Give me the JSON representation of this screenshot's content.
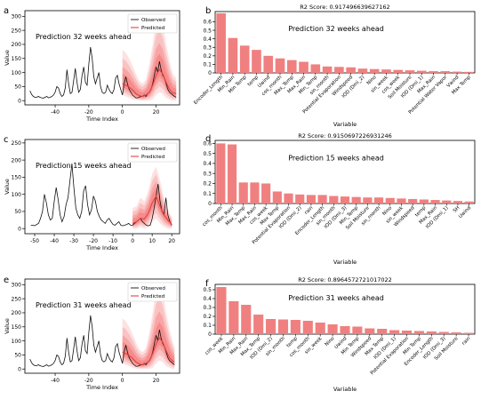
{
  "chart_data": [
    {
      "panel": "a",
      "type": "line",
      "title": "",
      "annotation": "Prediction 32 weeks ahead",
      "xlabel": "Time Index",
      "ylabel": "Value",
      "xlim": [
        -58,
        34
      ],
      "ylim": [
        -15,
        320
      ],
      "xticks": [
        -40,
        -20,
        0,
        20
      ],
      "yticks": [
        0,
        50,
        100,
        150,
        200,
        250,
        300
      ],
      "legend": {
        "position": "top-right",
        "entries": [
          "Observed",
          "Predicted"
        ]
      },
      "observed": {
        "name": "Observed",
        "x": [
          -55,
          -54,
          -53,
          -52,
          -51,
          -50,
          -49,
          -48,
          -47,
          -46,
          -45,
          -44,
          -43,
          -42,
          -41,
          -40,
          -39,
          -38,
          -37,
          -36,
          -35,
          -34,
          -33,
          -32,
          -31,
          -30,
          -29,
          -28,
          -27,
          -26,
          -25,
          -24,
          -23,
          -22,
          -21,
          -20,
          -19,
          -18,
          -17,
          -16,
          -15,
          -14,
          -13,
          -12,
          -11,
          -10,
          -9,
          -8,
          -7,
          -6,
          -5,
          -4,
          -3,
          -2,
          -1,
          0,
          1,
          2,
          3,
          4,
          5,
          6,
          7,
          8,
          9,
          10,
          11,
          12,
          13,
          14,
          15,
          16,
          17,
          18,
          19,
          20,
          21,
          22,
          23,
          24,
          25,
          26,
          27,
          28,
          29,
          30,
          31,
          32
        ],
        "y": [
          35,
          22,
          15,
          12,
          12,
          15,
          12,
          10,
          9,
          12,
          15,
          10,
          12,
          15,
          20,
          30,
          50,
          45,
          25,
          15,
          20,
          45,
          110,
          60,
          25,
          30,
          70,
          115,
          65,
          30,
          40,
          90,
          120,
          65,
          55,
          130,
          190,
          150,
          85,
          60,
          80,
          100,
          50,
          30,
          25,
          30,
          55,
          40,
          30,
          25,
          40,
          80,
          90,
          60,
          40,
          20,
          60,
          85,
          60,
          40,
          30,
          20,
          15,
          10,
          10,
          12,
          15,
          15,
          20,
          15,
          25,
          30,
          40,
          60,
          90,
          120,
          100,
          140,
          110,
          90,
          80,
          60,
          40,
          30,
          25,
          20,
          15,
          12
        ]
      },
      "predicted": {
        "name": "Predicted",
        "x": [
          0,
          2,
          4,
          6,
          8,
          10,
          12,
          14,
          16,
          18,
          20,
          22,
          24,
          26,
          28,
          30,
          32
        ],
        "median": [
          60,
          55,
          48,
          38,
          25,
          18,
          15,
          20,
          30,
          55,
          90,
          110,
          95,
          65,
          40,
          28,
          25
        ],
        "lower": [
          20,
          15,
          10,
          5,
          2,
          0,
          0,
          0,
          0,
          5,
          20,
          30,
          25,
          10,
          5,
          0,
          0
        ],
        "upper": [
          180,
          170,
          150,
          125,
          95,
          70,
          60,
          75,
          130,
          200,
          280,
          300,
          270,
          200,
          140,
          95,
          80
        ]
      }
    },
    {
      "panel": "b",
      "type": "bar",
      "title": "R2 Score: 0.917496639627162",
      "annotation": "Prediction 32 weeks ahead",
      "xlabel": "Variable",
      "ylabel": "",
      "ylim": [
        0,
        0.72
      ],
      "yticks": [
        0,
        0.1,
        0.2,
        0.3,
        0.4,
        0.5,
        0.6
      ],
      "categories": [
        "Encoder_Length",
        "Min_Rain",
        "Min Temp",
        "temp",
        "Uwind",
        "cos_month",
        "Max_Temp",
        "Max_Rain",
        "Min_Temp",
        "sin_month",
        "Potential Evaporation",
        "Windspeed",
        "IOD (Dmi_2)",
        "Nino",
        "sin_week",
        "cos_week",
        "Soil Moisture",
        "IOD (Dmi_1)",
        "Max_Rain",
        "Potential Water Vapor",
        "Vwind",
        "Max Temp"
      ],
      "values": [
        0.7,
        0.41,
        0.32,
        0.27,
        0.2,
        0.17,
        0.15,
        0.13,
        0.1,
        0.075,
        0.07,
        0.065,
        0.05,
        0.045,
        0.04,
        0.035,
        0.03,
        0.025,
        0.02,
        0.02,
        0.015,
        0.012
      ]
    },
    {
      "panel": "c",
      "type": "line",
      "title": "",
      "annotation": "Prediction 15 weeks ahead",
      "xlabel": "Time Index",
      "ylabel": "Value",
      "xlim": [
        -55,
        24
      ],
      "ylim": [
        -15,
        260
      ],
      "xticks": [
        -50,
        -40,
        -30,
        -20,
        -10,
        0,
        10,
        20
      ],
      "yticks": [
        0,
        50,
        100,
        150,
        200,
        250
      ],
      "legend": {
        "position": "top-right",
        "entries": [
          "Observed",
          "Predicted"
        ]
      },
      "observed": {
        "name": "Observed",
        "x": [
          -52,
          -51,
          -50,
          -49,
          -48,
          -47,
          -46,
          -45,
          -44,
          -43,
          -42,
          -41,
          -40,
          -39,
          -38,
          -37,
          -36,
          -35,
          -34,
          -33,
          -32,
          -31,
          -30,
          -29,
          -28,
          -27,
          -26,
          -25,
          -24,
          -23,
          -22,
          -21,
          -20,
          -19,
          -18,
          -17,
          -16,
          -15,
          -14,
          -13,
          -12,
          -11,
          -10,
          -9,
          -8,
          -7,
          -6,
          -5,
          -4,
          -3,
          -2,
          -1,
          0,
          1,
          2,
          3,
          4,
          5,
          6,
          7,
          8,
          9,
          10,
          11,
          12,
          13,
          14,
          15,
          16,
          17,
          18,
          19,
          20
        ],
        "y": [
          10,
          10,
          8,
          12,
          15,
          30,
          50,
          100,
          75,
          40,
          25,
          30,
          80,
          120,
          85,
          40,
          20,
          35,
          70,
          90,
          140,
          190,
          120,
          60,
          40,
          30,
          50,
          110,
          125,
          70,
          40,
          55,
          95,
          80,
          50,
          35,
          25,
          20,
          15,
          25,
          30,
          20,
          12,
          10,
          15,
          20,
          10,
          8,
          10,
          12,
          15,
          10,
          10,
          15,
          20,
          25,
          30,
          20,
          15,
          10,
          8,
          10,
          30,
          60,
          95,
          130,
          80,
          50,
          40,
          90,
          40,
          20,
          10
        ]
      },
      "predicted": {
        "name": "Predicted",
        "x": [
          0,
          2,
          4,
          6,
          8,
          10,
          12,
          14,
          16,
          18,
          20
        ],
        "median": [
          15,
          20,
          30,
          28,
          45,
          75,
          95,
          65,
          40,
          25,
          12
        ],
        "lower": [
          0,
          0,
          5,
          0,
          5,
          20,
          30,
          15,
          5,
          0,
          0
        ],
        "upper": [
          60,
          65,
          90,
          80,
          110,
          160,
          180,
          140,
          90,
          55,
          35
        ]
      }
    },
    {
      "panel": "d",
      "type": "bar",
      "title": "R2 Score: 0.915069722693124​6",
      "annotation": "Prediction 15 weeks ahead",
      "xlabel": "Variable",
      "ylabel": "",
      "ylim": [
        0,
        0.63
      ],
      "yticks": [
        0,
        0.1,
        0.2,
        0.3,
        0.4,
        0.5,
        0.6
      ],
      "categories": [
        "cos_month",
        "Min_Rain",
        "Max_Temp",
        "Max_Rain",
        "cos_week",
        "Max Temp",
        "Potential Evaporation",
        "IOD (Dmi_2)",
        "rain",
        "Encoder_Length",
        "sin_month",
        "IOD (Dmi_3)",
        "Min_Temp",
        "Soil Moisture",
        "sin_month",
        "Nino",
        "sin_week",
        "Windspeed",
        "temp",
        "Max_Rain",
        "IOD (Dmi_1)",
        "SH",
        "Uwind"
      ],
      "values": [
        0.6,
        0.59,
        0.21,
        0.21,
        0.2,
        0.12,
        0.1,
        0.09,
        0.085,
        0.085,
        0.075,
        0.07,
        0.065,
        0.06,
        0.06,
        0.055,
        0.05,
        0.045,
        0.04,
        0.035,
        0.03,
        0.025,
        0.02
      ]
    },
    {
      "panel": "e",
      "type": "line",
      "title": "",
      "annotation": "Prediction 31 weeks ahead",
      "xlabel": "Time Index",
      "ylabel": "Value",
      "xlim": [
        -58,
        34
      ],
      "ylim": [
        -15,
        320
      ],
      "xticks": [
        -40,
        -20,
        0,
        20
      ],
      "yticks": [
        0,
        50,
        100,
        150,
        200,
        250,
        300
      ],
      "legend": {
        "position": "top-right",
        "entries": [
          "Observed",
          "Predicted"
        ]
      },
      "observed": {
        "name": "Observed",
        "x": [
          -55,
          -54,
          -53,
          -52,
          -51,
          -50,
          -49,
          -48,
          -47,
          -46,
          -45,
          -44,
          -43,
          -42,
          -41,
          -40,
          -39,
          -38,
          -37,
          -36,
          -35,
          -34,
          -33,
          -32,
          -31,
          -30,
          -29,
          -28,
          -27,
          -26,
          -25,
          -24,
          -23,
          -22,
          -21,
          -20,
          -19,
          -18,
          -17,
          -16,
          -15,
          -14,
          -13,
          -12,
          -11,
          -10,
          -9,
          -8,
          -7,
          -6,
          -5,
          -4,
          -3,
          -2,
          -1,
          0,
          1,
          2,
          3,
          4,
          5,
          6,
          7,
          8,
          9,
          10,
          11,
          12,
          13,
          14,
          15,
          16,
          17,
          18,
          19,
          20,
          21,
          22,
          23,
          24,
          25,
          26,
          27,
          28,
          29,
          30,
          31
        ],
        "y": [
          35,
          22,
          15,
          12,
          12,
          15,
          12,
          10,
          9,
          12,
          15,
          10,
          12,
          15,
          20,
          30,
          50,
          45,
          25,
          15,
          20,
          45,
          110,
          60,
          25,
          30,
          70,
          115,
          65,
          30,
          40,
          90,
          120,
          65,
          55,
          130,
          190,
          150,
          85,
          60,
          80,
          100,
          50,
          30,
          25,
          30,
          55,
          40,
          30,
          25,
          40,
          80,
          90,
          60,
          40,
          20,
          60,
          85,
          60,
          40,
          30,
          20,
          15,
          10,
          10,
          12,
          15,
          15,
          20,
          15,
          25,
          30,
          40,
          60,
          90,
          120,
          100,
          140,
          110,
          90,
          80,
          60,
          40,
          30,
          25,
          20,
          15
        ]
      },
      "predicted": {
        "name": "Predicted",
        "x": [
          0,
          2,
          4,
          6,
          8,
          10,
          12,
          14,
          16,
          18,
          20,
          22,
          24,
          26,
          28,
          30,
          31
        ],
        "median": [
          60,
          55,
          48,
          38,
          25,
          18,
          15,
          20,
          30,
          55,
          90,
          110,
          95,
          65,
          40,
          28,
          25
        ],
        "lower": [
          20,
          15,
          10,
          5,
          2,
          0,
          0,
          0,
          0,
          5,
          20,
          30,
          25,
          10,
          5,
          0,
          0
        ],
        "upper": [
          180,
          170,
          150,
          125,
          95,
          70,
          60,
          75,
          130,
          200,
          280,
          300,
          270,
          200,
          140,
          95,
          80
        ]
      }
    },
    {
      "panel": "f",
      "type": "bar",
      "title": "R2 Score: 0.896457272101702​2",
      "annotation": "Prediction 31 weeks ahead",
      "xlabel": "Variable",
      "ylabel": "",
      "ylim": [
        0,
        0.56
      ],
      "yticks": [
        0,
        0.1,
        0.2,
        0.3,
        0.4,
        0.5
      ],
      "categories": [
        "cos_week",
        "Min_Rain",
        "Max_Rain",
        "Max_Temp",
        "IOD (Dmi_2)",
        "sin_month",
        "temp",
        "cos_month",
        "sin_week",
        "Nino",
        "Uwind",
        "Min Temp",
        "Windspeed",
        "Max Temp",
        "IOD (Dmi_1)",
        "Potential Evaporation",
        "Min Temp",
        "Encoder_Length",
        "IOD (Dmi_3)",
        "Soil Moisture",
        "rain"
      ],
      "values": [
        0.53,
        0.37,
        0.33,
        0.22,
        0.17,
        0.165,
        0.16,
        0.15,
        0.13,
        0.11,
        0.09,
        0.085,
        0.065,
        0.06,
        0.045,
        0.04,
        0.035,
        0.03,
        0.025,
        0.02,
        0.015
      ]
    }
  ]
}
